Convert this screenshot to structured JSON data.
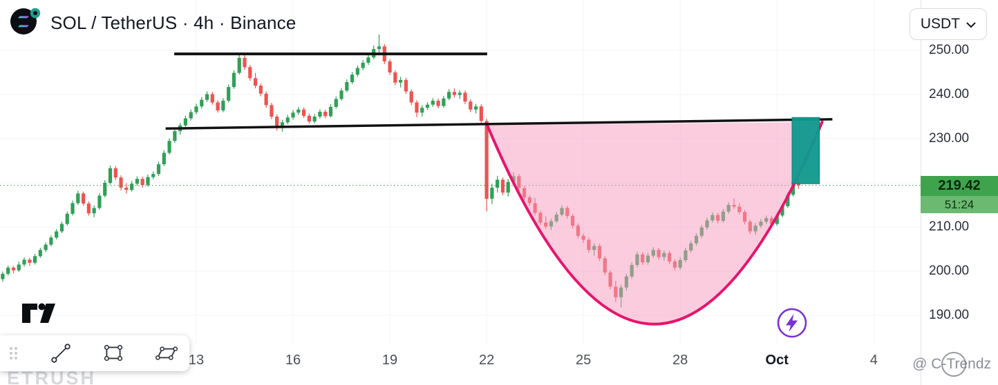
{
  "header": {
    "title": "SOL / TetherUS · 4h · Binance",
    "currency": "USDT"
  },
  "icons": {
    "chevron_down": "⌄"
  },
  "watermarks": {
    "ctrendz": "@ C-Trendz",
    "corner": "ETRUSH"
  },
  "chart_data": {
    "type": "candlestick",
    "symbol": "SOL/USDT",
    "interval": "4h",
    "exchange": "Binance",
    "up_color": "#30a057",
    "down_color": "#ef5350",
    "last_price": 219.42,
    "last_price_label": "219.42",
    "countdown": "51:24",
    "ylim": [
      178,
      261
    ],
    "price_ticks": [
      {
        "price": 250,
        "label": "250.00"
      },
      {
        "price": 240,
        "label": "240.00"
      },
      {
        "price": 230,
        "label": "230.00"
      },
      {
        "price": 210,
        "label": "210.00"
      },
      {
        "price": 200,
        "label": "200.00"
      },
      {
        "price": 190,
        "label": "190.00"
      }
    ],
    "time_ticks": [
      {
        "index": 36,
        "label": "13"
      },
      {
        "index": 54,
        "label": "16"
      },
      {
        "index": 72,
        "label": "19"
      },
      {
        "index": 90,
        "label": "22"
      },
      {
        "index": 108,
        "label": "25"
      },
      {
        "index": 126,
        "label": "28"
      },
      {
        "index": 144,
        "label": "Oct",
        "bold": true
      },
      {
        "index": 162,
        "label": "4"
      }
    ],
    "grid": {
      "price_lines": [
        250,
        240,
        230,
        220,
        210,
        200,
        190
      ],
      "time_line_indices": [
        36,
        54,
        72,
        90,
        108,
        126,
        144,
        162
      ]
    },
    "annotations": {
      "resistance_line": {
        "from_index": 31.9,
        "to_index": 90.1,
        "price": 249.2,
        "color": "#111111",
        "width": 4
      },
      "neckline": {
        "from_index": 30.3,
        "from_price": 232.3,
        "to_index": 154.3,
        "to_price": 234.4,
        "color": "#111111",
        "width": 3.5
      },
      "cup_curve": {
        "from_index": 90.1,
        "from_price": 233.1,
        "to_index": 152.4,
        "to_price": 233.8,
        "bottom_price": 188,
        "stroke": "#e8146b",
        "fill": "rgba(246,153,190,0.5)",
        "width": 4
      },
      "highlight_box": {
        "from_index": 146.8,
        "to_index": 151.9,
        "top_price": 234.8,
        "bottom_price": 219.8,
        "fill": "#12998e",
        "opacity": 0.96
      },
      "price_line": {
        "price": 219.42,
        "style": "dotted",
        "color": "#4f8f5f"
      }
    },
    "candles": [
      [
        198.2,
        199.9,
        197.6,
        199.4
      ],
      [
        199.4,
        201.3,
        199.0,
        200.8
      ],
      [
        200.8,
        201.2,
        199.5,
        200.2
      ],
      [
        200.2,
        202.2,
        199.8,
        201.5
      ],
      [
        201.5,
        203.1,
        201.0,
        202.6
      ],
      [
        202.6,
        203.0,
        201.2,
        201.9
      ],
      [
        201.9,
        203.9,
        201.5,
        203.4
      ],
      [
        203.4,
        205.3,
        203.0,
        204.8
      ],
      [
        204.8,
        206.5,
        204.3,
        206.0
      ],
      [
        206.0,
        208.1,
        205.6,
        207.6
      ],
      [
        207.6,
        209.5,
        207.2,
        209.0
      ],
      [
        209.0,
        211.2,
        208.6,
        210.7
      ],
      [
        210.7,
        213.5,
        210.3,
        213.0
      ],
      [
        213.0,
        216.0,
        212.6,
        215.4
      ],
      [
        215.4,
        218.2,
        215.0,
        217.6
      ],
      [
        217.6,
        218.0,
        214.8,
        215.3
      ],
      [
        215.3,
        215.8,
        212.6,
        213.1
      ],
      [
        213.1,
        214.9,
        212.2,
        214.3
      ],
      [
        214.3,
        217.7,
        213.9,
        217.1
      ],
      [
        217.1,
        220.6,
        216.7,
        220.0
      ],
      [
        220.0,
        223.9,
        219.6,
        223.3
      ],
      [
        223.3,
        223.8,
        220.6,
        221.2
      ],
      [
        221.2,
        221.7,
        218.3,
        218.9
      ],
      [
        218.9,
        219.9,
        217.6,
        218.4
      ],
      [
        218.4,
        220.4,
        218.0,
        219.8
      ],
      [
        219.8,
        221.5,
        219.3,
        220.9
      ],
      [
        220.9,
        221.4,
        218.9,
        219.5
      ],
      [
        219.5,
        221.9,
        219.1,
        221.3
      ],
      [
        221.3,
        222.6,
        220.8,
        222.0
      ],
      [
        222.0,
        224.8,
        221.6,
        224.2
      ],
      [
        224.2,
        227.4,
        223.8,
        226.8
      ],
      [
        226.8,
        230.1,
        226.4,
        229.5
      ],
      [
        229.5,
        232.3,
        229.0,
        231.7
      ],
      [
        231.7,
        233.6,
        230.9,
        233.0
      ],
      [
        233.0,
        235.2,
        232.5,
        234.6
      ],
      [
        234.6,
        236.6,
        234.1,
        236.0
      ],
      [
        236.0,
        237.9,
        235.5,
        237.3
      ],
      [
        237.3,
        239.4,
        236.8,
        238.8
      ],
      [
        238.8,
        240.7,
        238.3,
        240.1
      ],
      [
        240.1,
        240.6,
        237.7,
        238.2
      ],
      [
        238.2,
        238.7,
        235.9,
        236.4
      ],
      [
        236.4,
        239.2,
        236.0,
        238.6
      ],
      [
        238.6,
        242.3,
        238.2,
        241.7
      ],
      [
        241.7,
        245.5,
        241.3,
        244.9
      ],
      [
        244.9,
        248.9,
        244.5,
        248.3
      ],
      [
        248.3,
        249.0,
        245.6,
        246.2
      ],
      [
        246.2,
        246.7,
        243.1,
        243.7
      ],
      [
        243.7,
        244.9,
        241.4,
        242.0
      ],
      [
        242.0,
        242.5,
        239.6,
        240.2
      ],
      [
        240.2,
        240.7,
        237.0,
        237.6
      ],
      [
        237.6,
        238.1,
        234.4,
        235.0
      ],
      [
        235.0,
        235.5,
        231.8,
        232.4
      ],
      [
        232.4,
        234.3,
        231.6,
        233.7
      ],
      [
        233.7,
        235.4,
        233.2,
        234.8
      ],
      [
        234.8,
        236.5,
        234.3,
        235.9
      ],
      [
        235.9,
        237.2,
        235.4,
        236.6
      ],
      [
        236.6,
        237.1,
        234.7,
        235.2
      ],
      [
        235.2,
        235.7,
        233.4,
        233.9
      ],
      [
        233.9,
        235.6,
        233.5,
        235.0
      ],
      [
        235.0,
        236.7,
        234.5,
        236.1
      ],
      [
        236.1,
        236.6,
        234.6,
        235.1
      ],
      [
        235.1,
        237.8,
        234.8,
        237.2
      ],
      [
        237.2,
        239.6,
        236.8,
        239.0
      ],
      [
        239.0,
        241.5,
        238.6,
        240.9
      ],
      [
        240.9,
        243.4,
        240.5,
        242.8
      ],
      [
        242.8,
        245.1,
        242.4,
        244.5
      ],
      [
        244.5,
        246.6,
        244.0,
        246.0
      ],
      [
        246.0,
        247.8,
        245.5,
        247.2
      ],
      [
        247.2,
        249.0,
        246.7,
        248.4
      ],
      [
        248.4,
        251.1,
        248.0,
        250.3
      ],
      [
        250.3,
        253.6,
        249.4,
        250.9
      ],
      [
        250.9,
        251.4,
        246.9,
        247.5
      ],
      [
        247.5,
        248.0,
        244.4,
        245.0
      ],
      [
        245.0,
        245.5,
        242.1,
        242.7
      ],
      [
        242.7,
        244.0,
        241.6,
        243.3
      ],
      [
        243.3,
        243.8,
        240.1,
        240.7
      ],
      [
        240.7,
        241.2,
        237.6,
        238.2
      ],
      [
        238.2,
        238.7,
        234.9,
        235.9
      ],
      [
        235.9,
        237.6,
        235.0,
        237.0
      ],
      [
        237.0,
        238.3,
        236.5,
        237.7
      ],
      [
        237.7,
        239.2,
        237.2,
        238.6
      ],
      [
        238.6,
        239.1,
        236.9,
        237.4
      ],
      [
        237.4,
        239.7,
        237.0,
        239.1
      ],
      [
        239.1,
        241.2,
        238.7,
        240.6
      ],
      [
        240.6,
        241.4,
        239.3,
        239.9
      ],
      [
        239.9,
        241.0,
        239.0,
        240.4
      ],
      [
        240.4,
        240.9,
        237.8,
        238.4
      ],
      [
        238.4,
        238.9,
        236.0,
        236.6
      ],
      [
        236.6,
        237.9,
        235.7,
        237.3
      ],
      [
        237.3,
        237.8,
        233.4,
        234.0
      ],
      [
        234.0,
        234.5,
        213.6,
        216.4
      ],
      [
        216.4,
        219.8,
        215.2,
        218.9
      ],
      [
        218.9,
        221.6,
        217.8,
        220.7
      ],
      [
        220.7,
        221.2,
        217.2,
        217.8
      ],
      [
        217.8,
        220.9,
        216.9,
        220.2
      ],
      [
        220.2,
        222.4,
        219.4,
        221.5
      ],
      [
        221.5,
        222.0,
        218.2,
        218.8
      ],
      [
        218.8,
        219.3,
        216.1,
        216.7
      ],
      [
        216.7,
        217.2,
        214.8,
        215.4
      ],
      [
        215.4,
        216.6,
        212.6,
        213.2
      ],
      [
        213.2,
        213.7,
        210.4,
        211.0
      ],
      [
        211.0,
        212.4,
        209.6,
        210.1
      ],
      [
        210.1,
        211.9,
        209.3,
        211.3
      ],
      [
        211.3,
        213.4,
        210.9,
        212.8
      ],
      [
        212.8,
        214.9,
        212.4,
        214.3
      ],
      [
        214.3,
        214.8,
        211.9,
        212.5
      ],
      [
        212.5,
        213.0,
        209.7,
        210.3
      ],
      [
        210.3,
        210.8,
        207.4,
        208.0
      ],
      [
        208.0,
        208.5,
        206.4,
        207.1
      ],
      [
        207.1,
        207.6,
        204.2,
        204.8
      ],
      [
        204.8,
        206.3,
        203.5,
        205.7
      ],
      [
        205.7,
        206.2,
        202.3,
        202.9
      ],
      [
        202.9,
        203.4,
        199.1,
        199.7
      ],
      [
        199.7,
        200.2,
        195.9,
        196.5
      ],
      [
        196.5,
        197.8,
        193.0,
        194.1
      ],
      [
        194.1,
        196.9,
        191.8,
        196.3
      ],
      [
        196.3,
        199.4,
        195.6,
        198.8
      ],
      [
        198.8,
        202.0,
        198.3,
        201.4
      ],
      [
        201.4,
        204.4,
        200.9,
        203.8
      ],
      [
        203.8,
        204.3,
        201.4,
        202.0
      ],
      [
        202.0,
        204.1,
        201.5,
        203.5
      ],
      [
        203.5,
        205.4,
        203.0,
        204.8
      ],
      [
        204.8,
        205.3,
        202.6,
        203.2
      ],
      [
        203.2,
        204.7,
        202.4,
        204.1
      ],
      [
        204.1,
        204.6,
        201.6,
        202.2
      ],
      [
        202.2,
        202.7,
        200.2,
        200.8
      ],
      [
        200.8,
        203.1,
        200.3,
        202.5
      ],
      [
        202.5,
        205.3,
        202.0,
        204.7
      ],
      [
        204.7,
        206.9,
        204.2,
        206.3
      ],
      [
        206.3,
        208.6,
        205.8,
        208.0
      ],
      [
        208.0,
        210.5,
        207.5,
        209.9
      ],
      [
        209.9,
        212.1,
        209.4,
        211.5
      ],
      [
        211.5,
        213.3,
        211.0,
        212.7
      ],
      [
        212.7,
        213.2,
        210.8,
        211.4
      ],
      [
        211.4,
        214.1,
        211.0,
        213.5
      ],
      [
        213.5,
        215.6,
        213.0,
        215.0
      ],
      [
        215.0,
        216.5,
        214.1,
        214.6
      ],
      [
        214.6,
        215.4,
        212.9,
        213.4
      ],
      [
        213.4,
        213.9,
        210.6,
        211.2
      ],
      [
        211.2,
        211.7,
        208.4,
        209.0
      ],
      [
        209.0,
        210.9,
        208.2,
        210.3
      ],
      [
        210.3,
        211.8,
        209.8,
        211.2
      ],
      [
        211.2,
        212.6,
        210.7,
        212.0
      ],
      [
        212.0,
        212.5,
        210.1,
        210.7
      ],
      [
        210.7,
        213.2,
        210.3,
        212.6
      ],
      [
        212.6,
        215.3,
        212.2,
        214.7
      ],
      [
        214.7,
        217.9,
        214.3,
        217.3
      ],
      [
        217.3,
        220.8,
        216.9,
        220.2
      ],
      [
        220.2,
        222.5,
        218.6,
        219.4
      ]
    ]
  }
}
